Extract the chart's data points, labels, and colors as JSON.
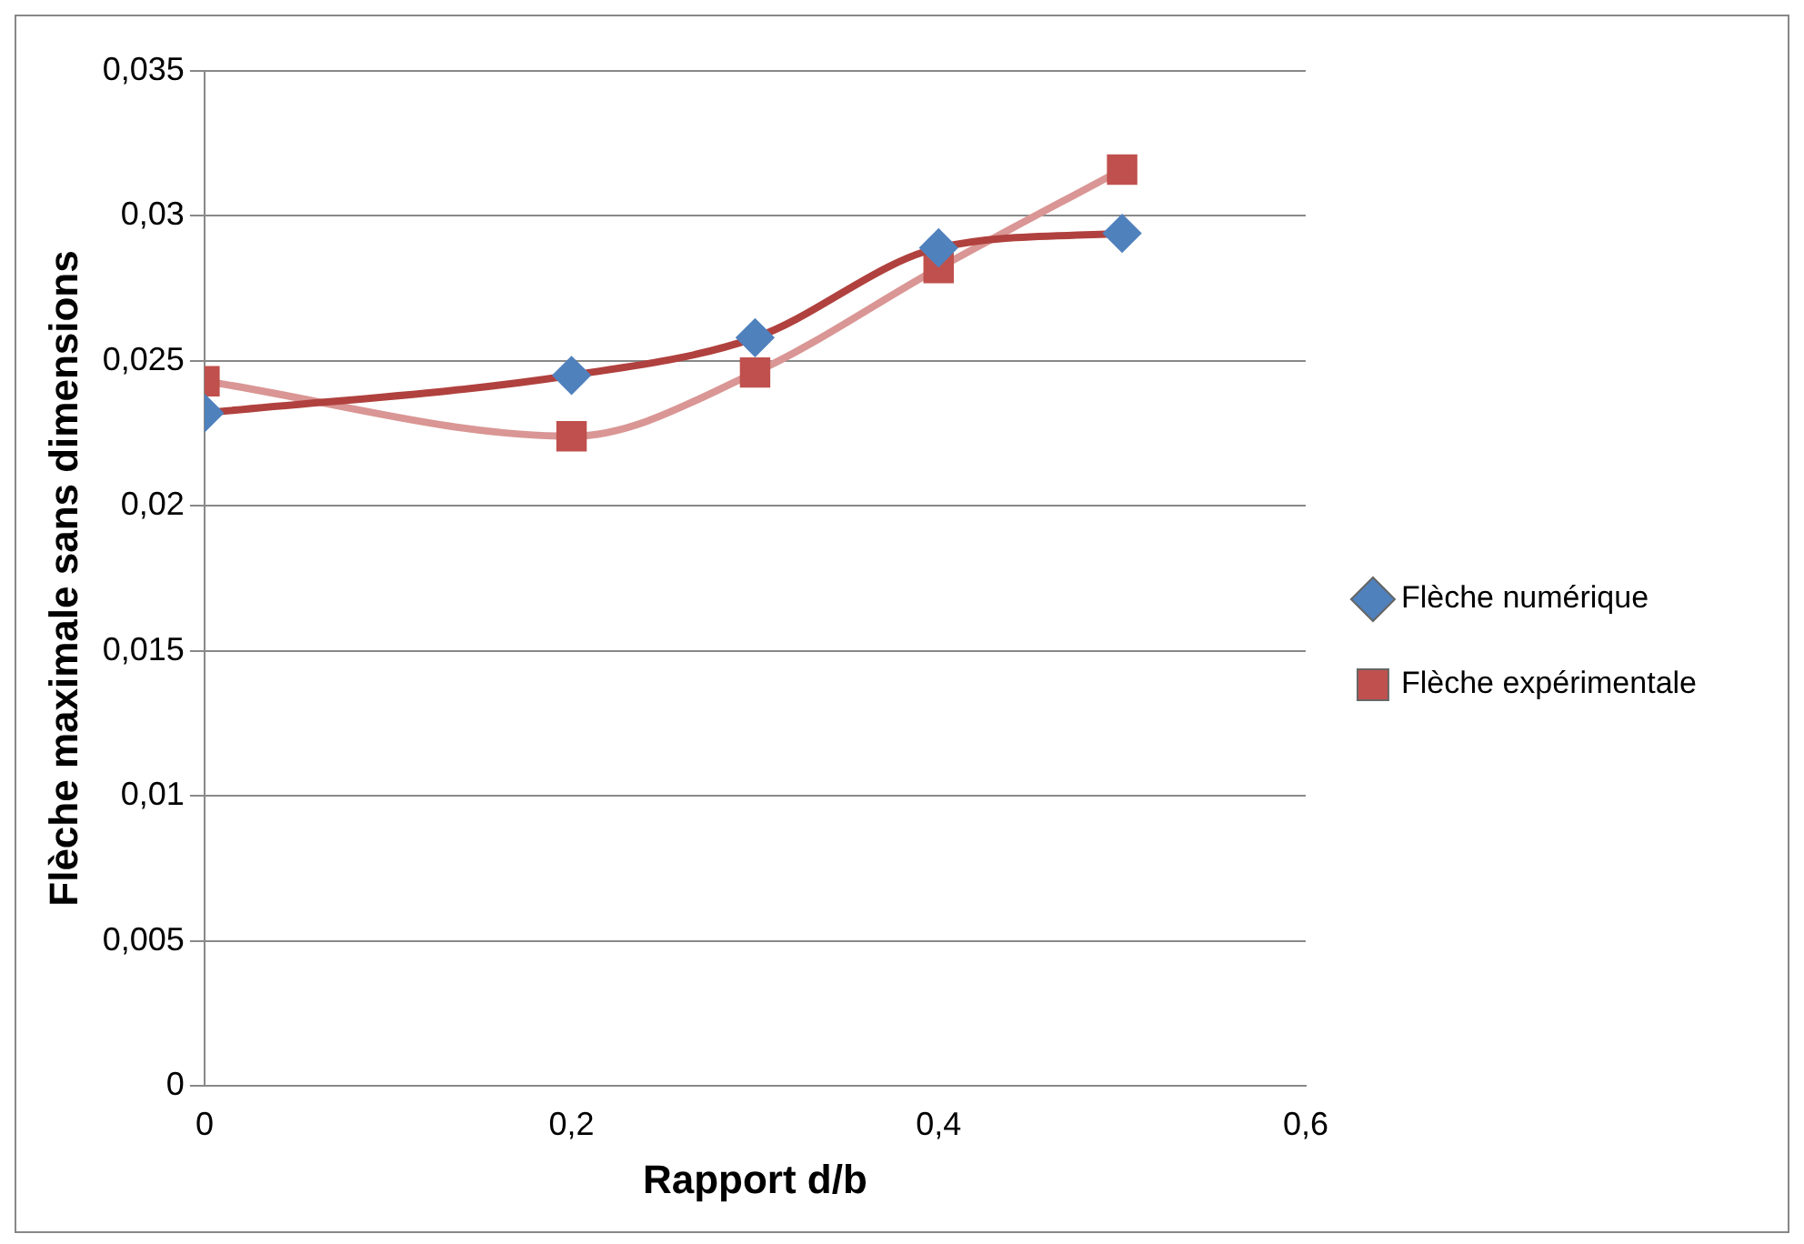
{
  "chart_data": {
    "type": "line",
    "xlabel": "Rapport d/b",
    "ylabel": "Flèche maximale sans dimensions",
    "x": [
      0,
      0.2,
      0.3,
      0.4,
      0.5
    ],
    "series": [
      {
        "name": "Flèche numérique",
        "color": "#b0413e",
        "colors": [
          "#4f81bd",
          "#4f81bd",
          "#4f81bd",
          "#4f81bd",
          "#4f81bd"
        ],
        "marker": "diamond",
        "values": [
          0.0232,
          0.0245,
          0.0258,
          0.0289,
          0.0294
        ]
      },
      {
        "name": "Flèche expérimentale",
        "color": "#d99694",
        "colors": [
          "#c0504d",
          "#c0504d",
          "#c0504d",
          "#c0504d",
          "#c0504d"
        ],
        "marker": "square",
        "values": [
          0.0243,
          0.0224,
          0.0246,
          0.0282,
          0.0316
        ]
      }
    ],
    "xlim": [
      0,
      0.6
    ],
    "xticks": [
      {
        "value": 0,
        "label": "0"
      },
      {
        "value": 0.2,
        "label": "0,2"
      },
      {
        "value": 0.4,
        "label": "0,4"
      },
      {
        "value": 0.6,
        "label": "0,6"
      }
    ],
    "ylim": [
      0,
      0.035
    ],
    "yticks": [
      {
        "value": 0,
        "label": "0"
      },
      {
        "value": 0.005,
        "label": "0,005"
      },
      {
        "value": 0.01,
        "label": "0,01"
      },
      {
        "value": 0.015,
        "label": "0,015"
      },
      {
        "value": 0.02,
        "label": "0,02"
      },
      {
        "value": 0.025,
        "label": "0,025"
      },
      {
        "value": 0.03,
        "label": "0,03"
      },
      {
        "value": 0.035,
        "label": "0,035"
      }
    ],
    "grid": "y",
    "legend": "right"
  }
}
